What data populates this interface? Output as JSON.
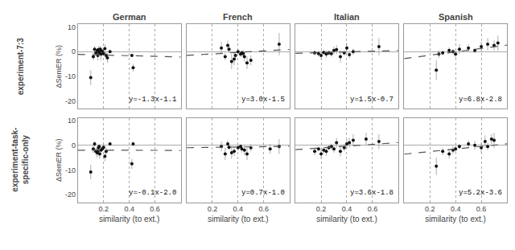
{
  "chart_data": [
    {
      "type": "scatter",
      "title": "German",
      "xlim": [
        0.0,
        0.8
      ],
      "ylim": [
        -23,
        11
      ],
      "xticks": [
        0.2,
        0.4,
        0.6
      ],
      "yticks": [
        -20,
        -10,
        0,
        10
      ],
      "grid": "x",
      "tick_labels": "y",
      "ylabel": "ΔSemER (%)",
      "annotations": [
        "y=-1.3x-1.1",
        "experiment-7:3"
      ],
      "series": [
        {
          "type": "scatter",
          "color": "#111111",
          "x": [
            0.1,
            0.12,
            0.13,
            0.14,
            0.15,
            0.155,
            0.16,
            0.165,
            0.17,
            0.175,
            0.18,
            0.19,
            0.2,
            0.21,
            0.22,
            0.23,
            0.25,
            0.42,
            0.43
          ],
          "values": [
            -10.5,
            -2.0,
            1.0,
            -0.5,
            0.5,
            -1.5,
            0.8,
            -0.3,
            0.5,
            1.0,
            -1.0,
            0.2,
            -0.8,
            1.2,
            -1.5,
            -2.5,
            0.0,
            -1.5,
            -6.5
          ],
          "yerr": [
            3.0,
            1.5,
            1.2,
            1.0,
            0.8,
            2.0,
            1.5,
            1.0,
            1.5,
            1.2,
            2.5,
            0.8,
            1.0,
            1.8,
            1.5,
            2.0,
            0.8,
            0.5,
            1.5
          ]
        },
        {
          "type": "line",
          "line_style": "dashed",
          "color": "#555555",
          "x": [
            0.0,
            0.8
          ],
          "values": [
            -1.1,
            -2.14
          ]
        }
      ]
    },
    {
      "type": "scatter",
      "title": "French",
      "xlim": [
        0.0,
        0.8
      ],
      "ylim": [
        -23,
        11
      ],
      "xticks": [
        0.2,
        0.4,
        0.6
      ],
      "yticks": [
        -20,
        -10,
        0,
        10
      ],
      "grid": "x",
      "tick_labels": false,
      "annotations": [
        "y=3.0x-1.5"
      ],
      "series": [
        {
          "type": "scatter",
          "color": "#111111",
          "x": [
            0.27,
            0.3,
            0.32,
            0.33,
            0.35,
            0.37,
            0.38,
            0.4,
            0.42,
            0.43,
            0.44,
            0.45,
            0.47,
            0.5,
            0.72
          ],
          "values": [
            1.5,
            -2.0,
            2.5,
            1.0,
            -4.0,
            -3.0,
            -1.5,
            0.0,
            -1.0,
            -0.5,
            -0.8,
            -2.0,
            -4.5,
            -3.5,
            3.0
          ],
          "yerr": [
            2.5,
            1.5,
            2.0,
            1.5,
            3.0,
            2.5,
            1.5,
            1.0,
            1.2,
            1.0,
            1.5,
            2.0,
            2.5,
            2.0,
            4.5
          ]
        },
        {
          "type": "line",
          "line_style": "dashed",
          "color": "#555555",
          "x": [
            0.0,
            0.8
          ],
          "values": [
            -1.5,
            0.9
          ]
        }
      ]
    },
    {
      "type": "scatter",
      "title": "Italian",
      "xlim": [
        0.0,
        0.8
      ],
      "ylim": [
        -23,
        11
      ],
      "xticks": [
        0.2,
        0.4,
        0.6
      ],
      "yticks": [
        -20,
        -10,
        0,
        10
      ],
      "grid": "x",
      "tick_labels": false,
      "annotations": [
        "y=1.5x-0.7"
      ],
      "series": [
        {
          "type": "scatter",
          "color": "#111111",
          "x": [
            0.15,
            0.18,
            0.2,
            0.22,
            0.24,
            0.26,
            0.28,
            0.3,
            0.32,
            0.35,
            0.38,
            0.4,
            0.42,
            0.45,
            0.65
          ],
          "values": [
            -0.5,
            -0.8,
            -1.5,
            -0.3,
            -1.0,
            -0.5,
            -0.8,
            0.5,
            0.8,
            -2.0,
            -0.5,
            1.5,
            -1.2,
            0.0,
            2.0
          ],
          "yerr": [
            1.0,
            1.2,
            1.5,
            0.8,
            1.5,
            1.0,
            1.2,
            1.5,
            1.8,
            2.5,
            1.0,
            2.0,
            1.5,
            1.2,
            3.5
          ]
        },
        {
          "type": "line",
          "line_style": "dashed",
          "color": "#555555",
          "x": [
            0.0,
            0.8
          ],
          "values": [
            -0.7,
            0.5
          ]
        }
      ]
    },
    {
      "type": "scatter",
      "title": "Spanish",
      "xlim": [
        0.0,
        0.8
      ],
      "ylim": [
        -23,
        11
      ],
      "xticks": [
        0.2,
        0.4,
        0.6
      ],
      "yticks": [
        -20,
        -10,
        0,
        10
      ],
      "grid": "x",
      "tick_labels": false,
      "annotations": [
        "y=6.8x-2.8"
      ],
      "series": [
        {
          "type": "scatter",
          "color": "#111111",
          "x": [
            0.25,
            0.27,
            0.3,
            0.35,
            0.38,
            0.4,
            0.43,
            0.5,
            0.55,
            0.6,
            0.65,
            0.7,
            0.73
          ],
          "values": [
            -7.5,
            -1.0,
            -0.5,
            0.5,
            0.0,
            -1.0,
            1.0,
            1.5,
            0.5,
            2.0,
            3.0,
            2.5,
            3.5
          ],
          "yerr": [
            4.0,
            1.5,
            1.0,
            1.2,
            1.0,
            1.5,
            2.0,
            1.5,
            1.0,
            2.0,
            2.5,
            2.0,
            3.0
          ]
        },
        {
          "type": "line",
          "line_style": "dashed",
          "color": "#555555",
          "x": [
            0.0,
            0.8
          ],
          "values": [
            -2.8,
            2.64
          ]
        }
      ]
    },
    {
      "type": "scatter",
      "xlabel": "similarity (to ext.)",
      "ylabel": "ΔSemER (%)",
      "xlim": [
        0.0,
        0.8
      ],
      "ylim": [
        -23,
        11
      ],
      "xticks": [
        0.2,
        0.4,
        0.6
      ],
      "yticks": [
        -20,
        -10,
        0,
        10
      ],
      "grid": "x",
      "annotations": [
        "y=-0.1x-2.0",
        "experiment-task-\nspecific-only"
      ],
      "series": [
        {
          "type": "scatter",
          "color": "#111111",
          "x": [
            0.1,
            0.12,
            0.13,
            0.14,
            0.15,
            0.155,
            0.16,
            0.165,
            0.17,
            0.18,
            0.19,
            0.2,
            0.21,
            0.22,
            0.25,
            0.42,
            0.43
          ],
          "values": [
            -10.8,
            -1.5,
            0.5,
            -2.5,
            -3.0,
            -2.5,
            -1.0,
            -0.5,
            -3.5,
            -2.0,
            -1.5,
            -0.8,
            -4.5,
            -2.5,
            0.5,
            -7.5,
            0.5
          ],
          "yerr": [
            3.0,
            1.5,
            1.0,
            1.5,
            2.0,
            1.5,
            1.2,
            1.0,
            2.0,
            1.5,
            1.0,
            1.2,
            2.0,
            1.5,
            0.5,
            2.0,
            0.8
          ]
        },
        {
          "type": "line",
          "line_style": "dashed",
          "color": "#555555",
          "x": [
            0.0,
            0.8
          ],
          "values": [
            -2.0,
            -2.08
          ]
        }
      ]
    },
    {
      "type": "scatter",
      "xlabel": "similarity (to ext.)",
      "xlim": [
        0.0,
        0.8
      ],
      "ylim": [
        -23,
        11
      ],
      "xticks": [
        0.2,
        0.4,
        0.6
      ],
      "yticks": [
        -20,
        -10,
        0,
        10
      ],
      "grid": "x",
      "tick_labels": "x",
      "annotations": [
        "y=0.7x-1.0"
      ],
      "series": [
        {
          "type": "scatter",
          "color": "#111111",
          "x": [
            0.27,
            0.3,
            0.32,
            0.33,
            0.35,
            0.37,
            0.4,
            0.42,
            0.43,
            0.45,
            0.47,
            0.5,
            0.65,
            0.72
          ],
          "values": [
            -0.5,
            -3.5,
            0.5,
            -0.8,
            -3.0,
            -2.5,
            -1.0,
            -0.5,
            -1.5,
            -2.0,
            -3.5,
            -1.0,
            -1.5,
            -0.5
          ],
          "yerr": [
            2.0,
            2.5,
            1.5,
            1.0,
            2.5,
            2.0,
            1.2,
            1.0,
            1.5,
            2.0,
            2.5,
            1.5,
            2.0,
            3.0
          ]
        },
        {
          "type": "line",
          "line_style": "dashed",
          "color": "#555555",
          "x": [
            0.0,
            0.8
          ],
          "values": [
            -1.0,
            -0.44
          ]
        }
      ]
    },
    {
      "type": "scatter",
      "xlabel": "similarity (to ext.)",
      "xlim": [
        0.0,
        0.8
      ],
      "ylim": [
        -23,
        11
      ],
      "xticks": [
        0.2,
        0.4,
        0.6
      ],
      "yticks": [
        -20,
        -10,
        0,
        10
      ],
      "grid": "x",
      "tick_labels": "x",
      "annotations": [
        "y=3.6x-1.8"
      ],
      "series": [
        {
          "type": "scatter",
          "color": "#111111",
          "x": [
            0.15,
            0.18,
            0.2,
            0.22,
            0.24,
            0.26,
            0.28,
            0.3,
            0.32,
            0.35,
            0.38,
            0.4,
            0.42,
            0.45,
            0.55,
            0.65
          ],
          "values": [
            -2.5,
            -1.5,
            -3.5,
            -2.0,
            -2.5,
            -1.0,
            -0.5,
            -1.5,
            1.0,
            -2.5,
            -1.0,
            0.5,
            1.0,
            2.0,
            2.5,
            1.5
          ],
          "yerr": [
            1.5,
            1.0,
            2.0,
            1.5,
            1.8,
            1.0,
            1.2,
            1.5,
            2.0,
            2.0,
            1.5,
            1.8,
            2.0,
            2.5,
            2.5,
            3.0
          ]
        },
        {
          "type": "line",
          "line_style": "dashed",
          "color": "#555555",
          "x": [
            0.0,
            0.8
          ],
          "values": [
            -1.8,
            1.08
          ]
        }
      ]
    },
    {
      "type": "scatter",
      "xlabel": "similarity (to ext.)",
      "xlim": [
        0.0,
        0.8
      ],
      "ylim": [
        -23,
        11
      ],
      "xticks": [
        0.2,
        0.4,
        0.6
      ],
      "yticks": [
        -20,
        -10,
        0,
        10
      ],
      "grid": "x",
      "tick_labels": "x",
      "annotations": [
        "y=5.2x-3.6"
      ],
      "series": [
        {
          "type": "scatter",
          "color": "#111111",
          "x": [
            0.25,
            0.3,
            0.35,
            0.38,
            0.4,
            0.43,
            0.5,
            0.55,
            0.6,
            0.63,
            0.65,
            0.68,
            0.7
          ],
          "values": [
            -8.5,
            -2.5,
            -3.5,
            -2.0,
            -1.5,
            -0.5,
            0.5,
            0.0,
            -1.0,
            1.5,
            -0.5,
            2.5,
            2.0
          ],
          "yerr": [
            3.5,
            1.5,
            2.0,
            1.5,
            1.2,
            1.0,
            1.5,
            1.8,
            2.0,
            2.5,
            1.5,
            2.0,
            3.0
          ]
        },
        {
          "type": "line",
          "line_style": "dashed",
          "color": "#555555",
          "x": [
            0.0,
            0.8
          ],
          "values": [
            -3.6,
            0.56
          ]
        }
      ]
    }
  ]
}
